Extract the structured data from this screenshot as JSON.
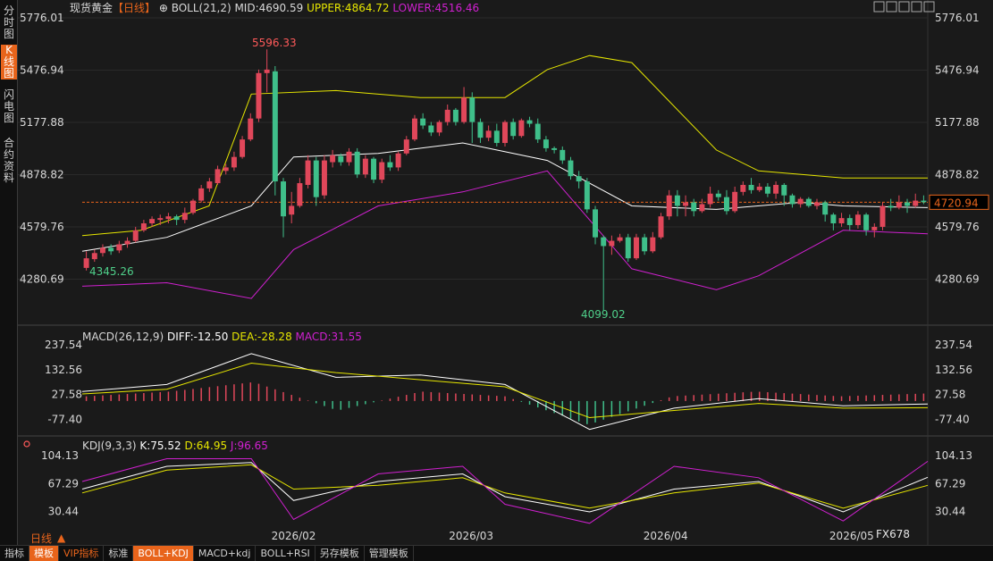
{
  "side_tabs": [
    {
      "label": "分时图",
      "active": false
    },
    {
      "label": "K线图",
      "active": true
    },
    {
      "label": "闪电图",
      "active": false
    },
    {
      "label": "合约资料",
      "active": false
    }
  ],
  "main_header": {
    "instrument": "现货黄金",
    "period_tag": "【日线】",
    "add_glyph": "⊕",
    "indicator": "BOLL(21,2)",
    "mid": "MID:4690.59",
    "upper": "UPPER:4864.72",
    "lower": "LOWER:4516.46"
  },
  "window_icons": [
    "expand-icon",
    "collapse-icon",
    "up-icon",
    "down-icon",
    "close-icon"
  ],
  "macd_header": {
    "name": "MACD(26,12,9)",
    "diff": "DIFF:-12.50",
    "dea": "DEA:-28.28",
    "macd": "MACD:31.55"
  },
  "kdj_header": {
    "name": "KDJ(9,3,3)",
    "k": "K:75.52",
    "d": "D:64.95",
    "j": "J:96.65"
  },
  "price_axis_ticks": [
    "5776.01",
    "5476.94",
    "5177.88",
    "4878.82",
    "4579.76",
    "4280.69"
  ],
  "macd_axis_ticks": [
    "237.54",
    "132.56",
    "27.58",
    "-77.40"
  ],
  "kdj_axis_ticks": [
    "104.13",
    "67.29",
    "30.44"
  ],
  "date_labels": [
    "2026/02",
    "2026/03",
    "2026/04",
    "2026/05"
  ],
  "period_label": "日线",
  "period_arrow": "▲",
  "current_price_label": "4720.94",
  "annotations": {
    "high": "5596.33",
    "low": "4099.02",
    "start_low": "4345.26"
  },
  "watermark": "FX678",
  "toolbar": [
    "指标",
    "模板",
    "VIP指标",
    "标准",
    "BOLL+KDJ",
    "MACD+kdj",
    "BOLL+RSI",
    "另存模板",
    "管理模板"
  ],
  "toolbar_active": [
    "模板",
    "BOLL+KDJ"
  ],
  "toolbar_vip": [
    "VIP指标"
  ],
  "colors": {
    "up": "#e0475a",
    "down": "#3fbf8a",
    "mid": "#ffffff",
    "upper": "#e6e600",
    "lower": "#d020d0",
    "dea": "#e6e600",
    "diff": "#ffffff",
    "kdj_k": "#ffffff",
    "kdj_d": "#e6e600",
    "kdj_j": "#d020d0",
    "accent": "#e8641b",
    "label_red": "#ff5a5a",
    "label_green": "#4fd08a"
  },
  "chart_data": {
    "type": "candlestick",
    "instrument": "现货黄金",
    "ylim": [
      4099.02,
      5776.01
    ],
    "current_price": 4720.94,
    "x": [
      "2026/01 early",
      "…",
      "2026/05"
    ],
    "candles": [
      [
        4345,
        4400,
        4330,
        4440
      ],
      [
        4395,
        4430,
        4380,
        4450
      ],
      [
        4430,
        4460,
        4410,
        4480
      ],
      [
        4460,
        4440,
        4420,
        4480
      ],
      [
        4445,
        4480,
        4430,
        4500
      ],
      [
        4480,
        4500,
        4460,
        4520
      ],
      [
        4500,
        4560,
        4490,
        4580
      ],
      [
        4560,
        4600,
        4550,
        4620
      ],
      [
        4600,
        4625,
        4580,
        4640
      ],
      [
        4620,
        4630,
        4590,
        4650
      ],
      [
        4625,
        4640,
        4600,
        4660
      ],
      [
        4640,
        4620,
        4590,
        4650
      ],
      [
        4620,
        4660,
        4600,
        4690
      ],
      [
        4660,
        4730,
        4650,
        4740
      ],
      [
        4730,
        4800,
        4720,
        4820
      ],
      [
        4800,
        4840,
        4780,
        4860
      ],
      [
        4830,
        4910,
        4820,
        4930
      ],
      [
        4900,
        4920,
        4880,
        4940
      ],
      [
        4920,
        4980,
        4900,
        5010
      ],
      [
        4980,
        5080,
        4970,
        5100
      ],
      [
        5080,
        5200,
        5070,
        5230
      ],
      [
        5200,
        5460,
        5180,
        5480
      ],
      [
        5460,
        5480,
        5350,
        5596
      ],
      [
        5470,
        4840,
        4760,
        5500
      ],
      [
        4840,
        4640,
        4520,
        4860
      ],
      [
        4650,
        4700,
        4600,
        4780
      ],
      [
        4700,
        4830,
        4690,
        4860
      ],
      [
        4820,
        4960,
        4800,
        4990
      ],
      [
        4960,
        4750,
        4700,
        4980
      ],
      [
        4760,
        4960,
        4740,
        4990
      ],
      [
        4950,
        4990,
        4920,
        5020
      ],
      [
        4985,
        4950,
        4930,
        5000
      ],
      [
        4950,
        5010,
        4930,
        5030
      ],
      [
        5010,
        4880,
        4860,
        5030
      ],
      [
        4880,
        4970,
        4860,
        4990
      ],
      [
        4970,
        4850,
        4830,
        4980
      ],
      [
        4850,
        4950,
        4830,
        4970
      ],
      [
        4950,
        4920,
        4900,
        4990
      ],
      [
        4920,
        5000,
        4900,
        5010
      ],
      [
        5000,
        5080,
        4990,
        5100
      ],
      [
        5080,
        5200,
        5070,
        5220
      ],
      [
        5200,
        5160,
        5140,
        5230
      ],
      [
        5160,
        5120,
        5100,
        5180
      ],
      [
        5120,
        5180,
        5100,
        5190
      ],
      [
        5180,
        5250,
        5160,
        5280
      ],
      [
        5250,
        5180,
        5160,
        5260
      ],
      [
        5180,
        5320,
        5170,
        5380
      ],
      [
        5320,
        5180,
        5060,
        5350
      ],
      [
        5180,
        5090,
        5060,
        5200
      ],
      [
        5090,
        5130,
        5070,
        5160
      ],
      [
        5130,
        5060,
        5040,
        5170
      ],
      [
        5060,
        5180,
        5040,
        5190
      ],
      [
        5180,
        5100,
        5080,
        5200
      ],
      [
        5100,
        5190,
        5090,
        5200
      ],
      [
        5190,
        5170,
        5150,
        5210
      ],
      [
        5170,
        5080,
        5060,
        5200
      ],
      [
        5080,
        5030,
        5010,
        5100
      ],
      [
        5030,
        5020,
        5000,
        5040
      ],
      [
        5020,
        4960,
        4940,
        5040
      ],
      [
        4960,
        4870,
        4850,
        4980
      ],
      [
        4870,
        4840,
        4800,
        4900
      ],
      [
        4840,
        4680,
        4660,
        4860
      ],
      [
        4680,
        4520,
        4480,
        4700
      ],
      [
        4520,
        4470,
        4099,
        4530
      ],
      [
        4470,
        4500,
        4420,
        4530
      ],
      [
        4500,
        4520,
        4490,
        4540
      ],
      [
        4520,
        4400,
        4380,
        4540
      ],
      [
        4400,
        4520,
        4390,
        4540
      ],
      [
        4520,
        4440,
        4420,
        4540
      ],
      [
        4440,
        4520,
        4430,
        4550
      ],
      [
        4520,
        4640,
        4510,
        4660
      ],
      [
        4640,
        4760,
        4620,
        4790
      ],
      [
        4760,
        4700,
        4640,
        4790
      ],
      [
        4700,
        4720,
        4640,
        4760
      ],
      [
        4720,
        4670,
        4640,
        4740
      ],
      [
        4670,
        4710,
        4660,
        4740
      ],
      [
        4710,
        4770,
        4690,
        4810
      ],
      [
        4770,
        4750,
        4730,
        4790
      ],
      [
        4750,
        4670,
        4650,
        4790
      ],
      [
        4670,
        4780,
        4660,
        4810
      ],
      [
        4780,
        4820,
        4760,
        4840
      ],
      [
        4820,
        4790,
        4770,
        4860
      ],
      [
        4790,
        4810,
        4780,
        4830
      ],
      [
        4810,
        4770,
        4750,
        4830
      ],
      [
        4770,
        4820,
        4740,
        4840
      ],
      [
        4820,
        4760,
        4700,
        4830
      ],
      [
        4760,
        4710,
        4690,
        4770
      ],
      [
        4710,
        4740,
        4690,
        4750
      ],
      [
        4740,
        4700,
        4690,
        4750
      ],
      [
        4700,
        4720,
        4680,
        4740
      ],
      [
        4720,
        4650,
        4610,
        4730
      ],
      [
        4650,
        4600,
        4560,
        4660
      ],
      [
        4600,
        4630,
        4580,
        4660
      ],
      [
        4630,
        4590,
        4560,
        4650
      ],
      [
        4590,
        4650,
        4570,
        4670
      ],
      [
        4650,
        4560,
        4530,
        4660
      ],
      [
        4560,
        4580,
        4520,
        4600
      ],
      [
        4580,
        4700,
        4560,
        4720
      ],
      [
        4700,
        4690,
        4670,
        4740
      ],
      [
        4690,
        4720,
        4680,
        4760
      ],
      [
        4720,
        4700,
        4660,
        4740
      ],
      [
        4700,
        4730,
        4690,
        4770
      ],
      [
        4730,
        4721,
        4710,
        4760
      ]
    ],
    "boll": {
      "upper_path": [
        [
          0,
          4530
        ],
        [
          0.07,
          4560
        ],
        [
          0.15,
          4700
        ],
        [
          0.2,
          5340
        ],
        [
          0.3,
          5360
        ],
        [
          0.4,
          5320
        ],
        [
          0.5,
          5320
        ],
        [
          0.55,
          5480
        ],
        [
          0.6,
          5560
        ],
        [
          0.65,
          5520
        ],
        [
          0.75,
          5020
        ],
        [
          0.8,
          4900
        ],
        [
          0.9,
          4860
        ],
        [
          1.0,
          4860
        ]
      ],
      "mid_path": [
        [
          0,
          4440
        ],
        [
          0.1,
          4520
        ],
        [
          0.2,
          4700
        ],
        [
          0.25,
          4980
        ],
        [
          0.35,
          5000
        ],
        [
          0.45,
          5060
        ],
        [
          0.55,
          4960
        ],
        [
          0.65,
          4700
        ],
        [
          0.75,
          4680
        ],
        [
          0.85,
          4720
        ],
        [
          0.9,
          4700
        ],
        [
          1.0,
          4690
        ]
      ],
      "lower_path": [
        [
          0,
          4240
        ],
        [
          0.1,
          4260
        ],
        [
          0.2,
          4170
        ],
        [
          0.25,
          4450
        ],
        [
          0.35,
          4700
        ],
        [
          0.45,
          4780
        ],
        [
          0.55,
          4900
        ],
        [
          0.65,
          4340
        ],
        [
          0.75,
          4220
        ],
        [
          0.8,
          4300
        ],
        [
          0.9,
          4560
        ],
        [
          1.0,
          4540
        ]
      ]
    },
    "macd": {
      "ylim": [
        -140,
        260
      ],
      "diff_path": [
        [
          0,
          40
        ],
        [
          0.1,
          70
        ],
        [
          0.2,
          200
        ],
        [
          0.3,
          100
        ],
        [
          0.4,
          110
        ],
        [
          0.5,
          70
        ],
        [
          0.6,
          -120
        ],
        [
          0.7,
          -30
        ],
        [
          0.8,
          10
        ],
        [
          0.9,
          -20
        ],
        [
          1.0,
          -12.5
        ]
      ],
      "dea_path": [
        [
          0,
          30
        ],
        [
          0.1,
          50
        ],
        [
          0.2,
          160
        ],
        [
          0.3,
          120
        ],
        [
          0.4,
          90
        ],
        [
          0.5,
          60
        ],
        [
          0.6,
          -70
        ],
        [
          0.7,
          -40
        ],
        [
          0.8,
          -10
        ],
        [
          0.9,
          -30
        ],
        [
          1.0,
          -28.28
        ]
      ]
    },
    "kdj": {
      "ylim": [
        5,
        115
      ],
      "k_path": [
        [
          0,
          60
        ],
        [
          0.1,
          90
        ],
        [
          0.2,
          95
        ],
        [
          0.25,
          45
        ],
        [
          0.35,
          70
        ],
        [
          0.45,
          80
        ],
        [
          0.5,
          50
        ],
        [
          0.6,
          30
        ],
        [
          0.7,
          60
        ],
        [
          0.8,
          70
        ],
        [
          0.9,
          30
        ],
        [
          1.0,
          75.52
        ]
      ],
      "d_path": [
        [
          0,
          55
        ],
        [
          0.1,
          85
        ],
        [
          0.2,
          92
        ],
        [
          0.25,
          60
        ],
        [
          0.35,
          65
        ],
        [
          0.45,
          75
        ],
        [
          0.5,
          55
        ],
        [
          0.6,
          35
        ],
        [
          0.7,
          55
        ],
        [
          0.8,
          68
        ],
        [
          0.9,
          35
        ],
        [
          1.0,
          64.95
        ]
      ],
      "j_path": [
        [
          0,
          70
        ],
        [
          0.1,
          100
        ],
        [
          0.2,
          100
        ],
        [
          0.25,
          20
        ],
        [
          0.35,
          80
        ],
        [
          0.45,
          90
        ],
        [
          0.5,
          40
        ],
        [
          0.6,
          15
        ],
        [
          0.7,
          90
        ],
        [
          0.8,
          75
        ],
        [
          0.9,
          18
        ],
        [
          1.0,
          96.65
        ]
      ]
    }
  }
}
